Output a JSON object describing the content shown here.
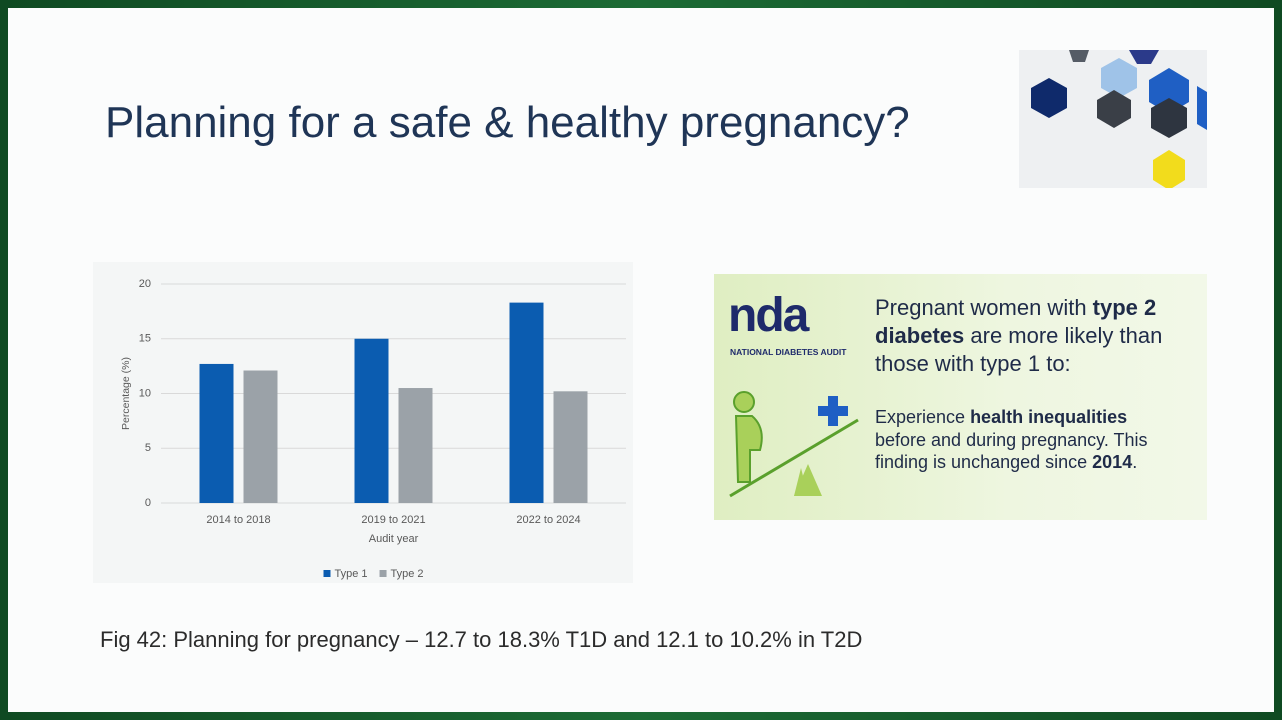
{
  "slide": {
    "title": "Planning for a safe & healthy pregnancy?",
    "caption": "Fig 42: Planning for pregnancy – 12.7 to 18.3% T1D and 12.1 to 10.2% in T2D"
  },
  "infographic": {
    "logo": "nda",
    "logo_subtitle": "NATIONAL DIABETES AUDIT",
    "headline": [
      "Pregnant women with ",
      "type 2 diabetes",
      " are more likely than those with type 1 to:"
    ],
    "finding": [
      "Experience ",
      "health inequalities",
      " before and during pregnancy. This finding is unchanged since ",
      "2014",
      "."
    ]
  },
  "chart_data": {
    "type": "bar",
    "categories": [
      "2014 to 2018",
      "2019 to 2021",
      "2022 to 2024"
    ],
    "series": [
      {
        "name": "Type 1",
        "color": "#0b5cb0",
        "values": [
          12.7,
          15.0,
          18.3
        ]
      },
      {
        "name": "Type 2",
        "color": "#9ba2a8",
        "values": [
          12.1,
          10.5,
          10.2
        ]
      }
    ],
    "xlabel": "Audit year",
    "ylabel": "Percentage (%)",
    "ylim": [
      0,
      20
    ],
    "yticks": [
      0,
      5,
      10,
      15,
      20
    ],
    "grid": true,
    "legend": "bottom"
  }
}
